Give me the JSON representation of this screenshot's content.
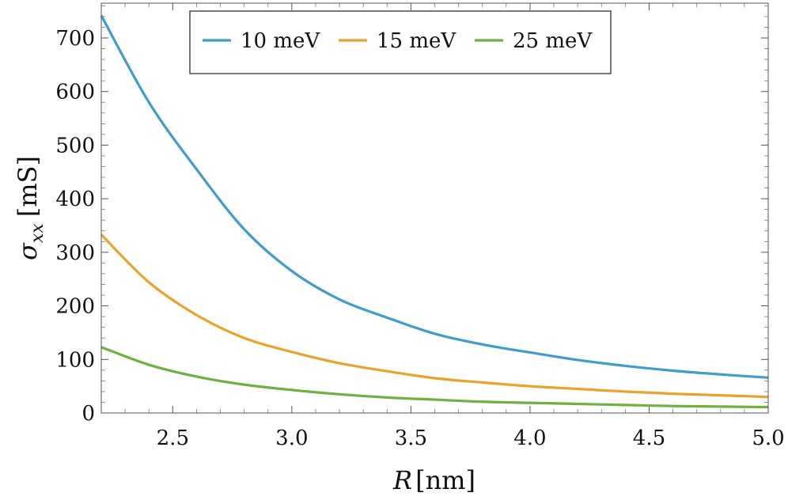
{
  "chart_data": {
    "type": "line",
    "xlabel": {
      "var": "R",
      "unit": "[nm]"
    },
    "ylabel": {
      "var": "σ",
      "sub": "xx",
      "unit": "[mS]"
    },
    "xlim": [
      2.2,
      5.0
    ],
    "ylim": [
      0,
      765
    ],
    "xticks": [
      "2.5",
      "3.0",
      "3.5",
      "4.0",
      "4.5",
      "5.0"
    ],
    "yticks": [
      "0",
      "100",
      "200",
      "300",
      "400",
      "500",
      "600",
      "700"
    ],
    "grid": false,
    "legend_position": "top-center",
    "x": [
      2.2,
      2.4,
      2.6,
      2.8,
      3.0,
      3.2,
      3.4,
      3.6,
      3.8,
      4.0,
      4.2,
      4.4,
      4.6,
      4.8,
      5.0
    ],
    "series": [
      {
        "name": "10 meV",
        "color": "#3f9ccc",
        "values": [
          742,
          580,
          455,
          343,
          265,
          212,
          178,
          148,
          128,
          113,
          99,
          88,
          79,
          72,
          66
        ]
      },
      {
        "name": "15 meV",
        "color": "#eba22b",
        "values": [
          333,
          244,
          183,
          140,
          114,
          93,
          78,
          65,
          57,
          50,
          45,
          40,
          36,
          33,
          30
        ]
      },
      {
        "name": "25 meV",
        "color": "#6fb03f",
        "values": [
          123,
          90,
          68,
          53,
          43,
          35,
          29,
          25,
          21,
          19,
          17,
          15,
          13,
          12,
          11
        ]
      }
    ]
  }
}
